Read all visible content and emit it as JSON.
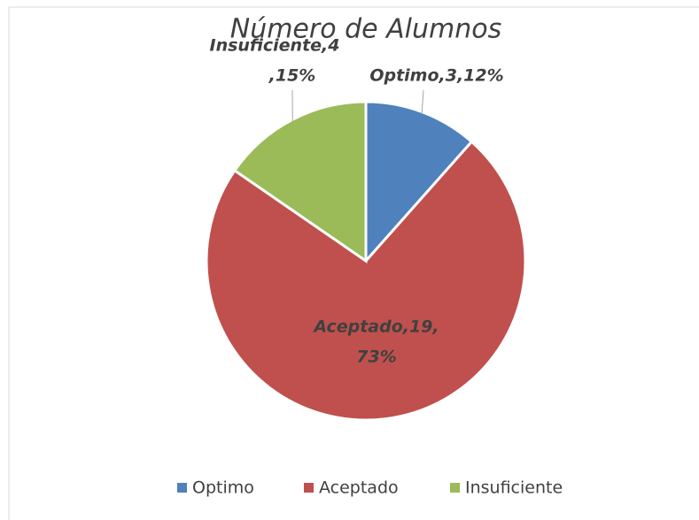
{
  "chart_data": {
    "type": "pie",
    "title": "Número de Alumnos",
    "categories": [
      "Optimo",
      "Aceptado",
      "Insuficiente"
    ],
    "values": [
      3,
      19,
      4
    ],
    "value_labels": [
      [
        "Optimo,3,12%"
      ],
      [
        "Aceptado,19,",
        "73%"
      ],
      [
        "Insuficiente,4",
        ",15%"
      ]
    ],
    "colors": [
      "#4f81bd",
      "#c0504d",
      "#9bbb59"
    ],
    "legend": "bottom"
  }
}
